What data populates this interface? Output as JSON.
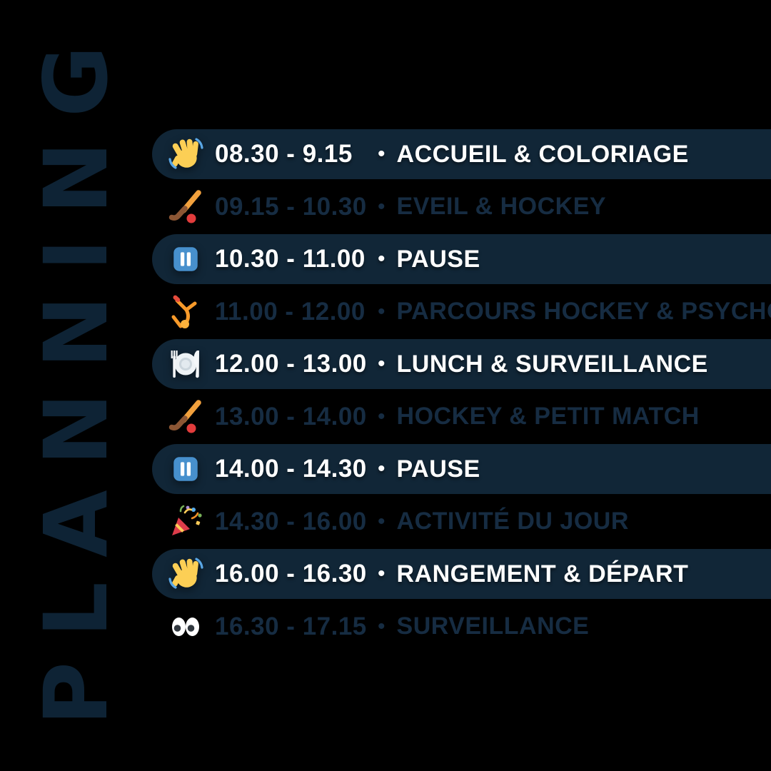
{
  "page": {
    "vertical_title": "PLANNING",
    "background": "#000000"
  },
  "palette": {
    "pill_background": "#112637",
    "pill_text": "#ffffff",
    "dim_text": "#162c42",
    "title_color": "#0e2335"
  },
  "schedule": {
    "separator": "•",
    "rows": [
      {
        "icon": "wave-icon",
        "time": "08.30 - 9.15",
        "activity": "ACCUEIL & COLORIAGE",
        "highlighted": true
      },
      {
        "icon": "hockey-icon",
        "time": "09.15 - 10.30",
        "activity": "EVEIL & HOCKEY",
        "highlighted": false
      },
      {
        "icon": "pause-icon",
        "time": "10.30 - 11.00",
        "activity": "PAUSE",
        "highlighted": true
      },
      {
        "icon": "cartwheel-icon",
        "time": "11.00 - 12.00",
        "activity": "PARCOURS HOCKEY & PSYCHOMOT",
        "highlighted": false
      },
      {
        "icon": "meal-icon",
        "time": "12.00 - 13.00",
        "activity": "LUNCH & SURVEILLANCE",
        "highlighted": true
      },
      {
        "icon": "hockey-icon",
        "time": "13.00 - 14.00",
        "activity": "HOCKEY & PETIT MATCH",
        "highlighted": false
      },
      {
        "icon": "pause-icon",
        "time": "14.00 - 14.30",
        "activity": "PAUSE",
        "highlighted": true
      },
      {
        "icon": "party-icon",
        "time": "14.30 - 16.00",
        "activity": "ACTIVITÉ DU JOUR",
        "highlighted": false
      },
      {
        "icon": "wave-icon",
        "time": "16.00 - 16.30",
        "activity": "RANGEMENT & DÉPART",
        "highlighted": true
      },
      {
        "icon": "eyes-icon",
        "time": "16.30 - 17.15",
        "activity": "SURVEILLANCE",
        "highlighted": false
      }
    ]
  }
}
